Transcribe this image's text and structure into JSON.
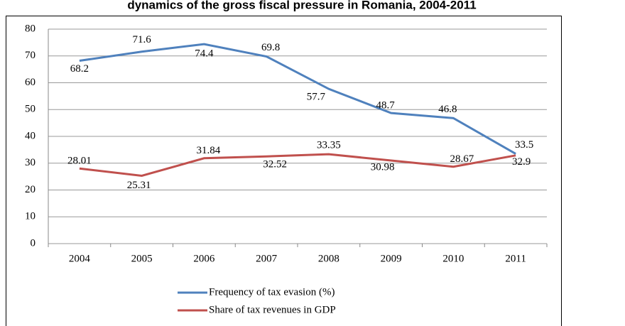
{
  "chart_data": {
    "type": "line",
    "title": "dynamics of the gross fiscal pressure in Romania, 2004-2011",
    "categories": [
      "2004",
      "2005",
      "2006",
      "2007",
      "2008",
      "2009",
      "2010",
      "2011"
    ],
    "series": [
      {
        "name": "Frequency of tax evasion (%)",
        "color": "#4f81bd",
        "values": [
          68.2,
          71.6,
          74.4,
          69.8,
          57.7,
          48.7,
          46.8,
          33.5
        ]
      },
      {
        "name": "Share of tax revenues in GDP",
        "color": "#c0504d",
        "values": [
          28.01,
          25.31,
          31.84,
          32.52,
          33.35,
          30.98,
          28.67,
          32.9
        ]
      }
    ],
    "ylim": [
      0,
      80
    ],
    "yticks": [
      0,
      10,
      20,
      30,
      40,
      50,
      60,
      70,
      80
    ],
    "grid": true,
    "legend": "bottom"
  }
}
